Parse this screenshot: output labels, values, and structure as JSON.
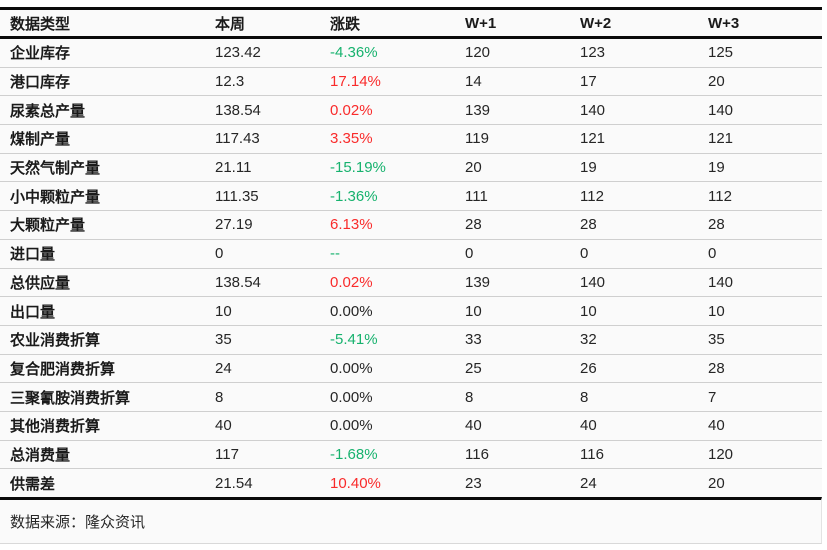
{
  "chart_data": {
    "type": "table",
    "columns": [
      "数据类型",
      "本周",
      "涨跌",
      "W+1",
      "W+2",
      "W+3"
    ],
    "rows": [
      {
        "label": "企业库存",
        "week": "123.42",
        "change": "-4.36%",
        "change_color": "green",
        "w1": "120",
        "w2": "123",
        "w3": "125"
      },
      {
        "label": "港口库存",
        "week": "12.3",
        "change": "17.14%",
        "change_color": "red",
        "w1": "14",
        "w2": "17",
        "w3": "20"
      },
      {
        "label": "尿素总产量",
        "week": "138.54",
        "change": "0.02%",
        "change_color": "red",
        "w1": "139",
        "w2": "140",
        "w3": "140"
      },
      {
        "label": "煤制产量",
        "week": "117.43",
        "change": "3.35%",
        "change_color": "red",
        "w1": "119",
        "w2": "121",
        "w3": "121"
      },
      {
        "label": "天然气制产量",
        "week": "21.11",
        "change": "-15.19%",
        "change_color": "green",
        "w1": "20",
        "w2": "19",
        "w3": "19"
      },
      {
        "label": "小中颗粒产量",
        "week": "111.35",
        "change": "-1.36%",
        "change_color": "green",
        "w1": "111",
        "w2": "112",
        "w3": "112"
      },
      {
        "label": "大颗粒产量",
        "week": "27.19",
        "change": "6.13%",
        "change_color": "red",
        "w1": "28",
        "w2": "28",
        "w3": "28"
      },
      {
        "label": "进口量",
        "week": "0",
        "change": "--",
        "change_color": "green",
        "w1": "0",
        "w2": "0",
        "w3": "0"
      },
      {
        "label": "总供应量",
        "week": "138.54",
        "change": "0.02%",
        "change_color": "red",
        "w1": "139",
        "w2": "140",
        "w3": "140"
      },
      {
        "label": "出口量",
        "week": "10",
        "change": "0.00%",
        "change_color": "black",
        "w1": "10",
        "w2": "10",
        "w3": "10"
      },
      {
        "label": "农业消费折算",
        "week": "35",
        "change": "-5.41%",
        "change_color": "green",
        "w1": "33",
        "w2": "32",
        "w3": "35"
      },
      {
        "label": "复合肥消费折算",
        "week": "24",
        "change": "0.00%",
        "change_color": "black",
        "w1": "25",
        "w2": "26",
        "w3": "28"
      },
      {
        "label": "三聚氰胺消费折算",
        "week": "8",
        "change": "0.00%",
        "change_color": "black",
        "w1": "8",
        "w2": "8",
        "w3": "7"
      },
      {
        "label": "其他消费折算",
        "week": "40",
        "change": "0.00%",
        "change_color": "black",
        "w1": "40",
        "w2": "40",
        "w3": "40"
      },
      {
        "label": "总消费量",
        "week": "117",
        "change": "-1.68%",
        "change_color": "green",
        "w1": "116",
        "w2": "116",
        "w3": "120"
      },
      {
        "label": "供需差",
        "week": "21.54",
        "change": "10.40%",
        "change_color": "red",
        "w1": "23",
        "w2": "24",
        "w3": "20"
      }
    ],
    "legend_position": "none",
    "grid": "horizontal-separators"
  },
  "footer": {
    "source": "数据来源：隆众资讯"
  },
  "colors": {
    "increase_red": "#f92b2b",
    "decrease_green": "#17b26e",
    "neutral_text": "#262626",
    "heavy_rule": "#0a0a0a",
    "row_separator": "#cfcfcf"
  }
}
